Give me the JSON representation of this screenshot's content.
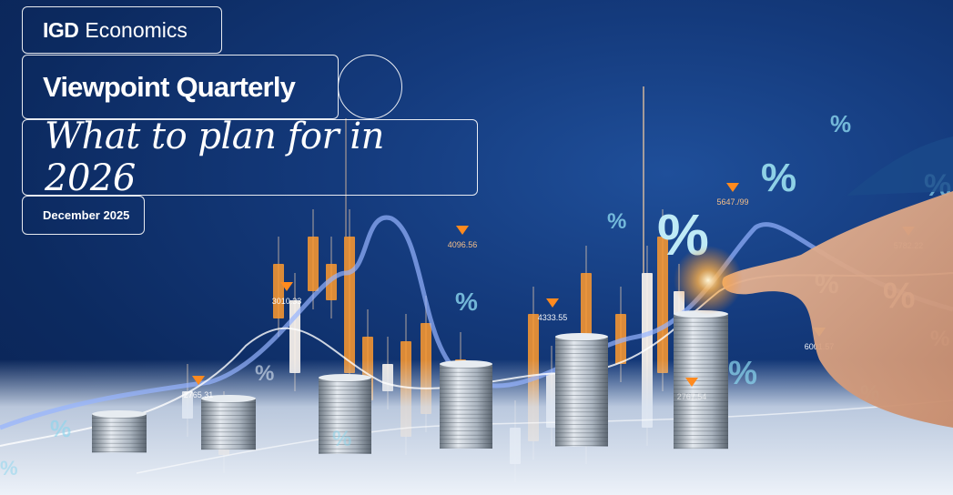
{
  "brand": {
    "logo_text": "IGD",
    "name": "Economics"
  },
  "series_title": "Viewpoint Quarterly",
  "headline": "What to plan for in 2026",
  "date": "December 2025",
  "image": {
    "price_labels": [
      "2765.31",
      "3010.33",
      "4096.56",
      "4333.55",
      "5647./99",
      "6001.57",
      "2767.54",
      "5782.22"
    ],
    "percent_symbol": "%",
    "colors": {
      "orange": "#ff9a2e",
      "background": "#0c2a60",
      "coin": "#b9c3cc",
      "marker": "#ff8a1e"
    }
  }
}
